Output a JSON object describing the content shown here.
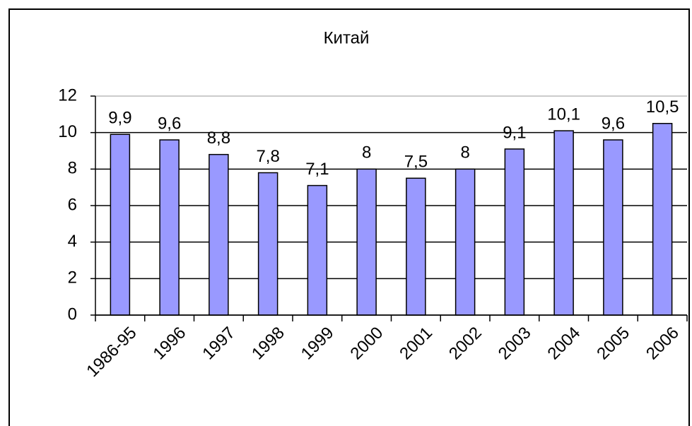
{
  "chart_data": {
    "type": "bar",
    "title": "Китай",
    "categories": [
      "1986-95",
      "1996",
      "1997",
      "1998",
      "1999",
      "2000",
      "2001",
      "2002",
      "2003",
      "2004",
      "2005",
      "2006"
    ],
    "values": [
      9.9,
      9.6,
      8.8,
      7.8,
      7.1,
      8,
      7.5,
      8,
      9.1,
      10.1,
      9.6,
      10.5
    ],
    "value_labels": [
      "9,9",
      "9,6",
      "8,8",
      "7,8",
      "7,1",
      "8",
      "7,5",
      "8",
      "9,1",
      "10,1",
      "9,6",
      "10,5"
    ],
    "color": "#9999ff",
    "ylim": [
      0,
      12
    ],
    "yticks": [
      0,
      2,
      4,
      6,
      8,
      10,
      12
    ],
    "grid": true
  }
}
